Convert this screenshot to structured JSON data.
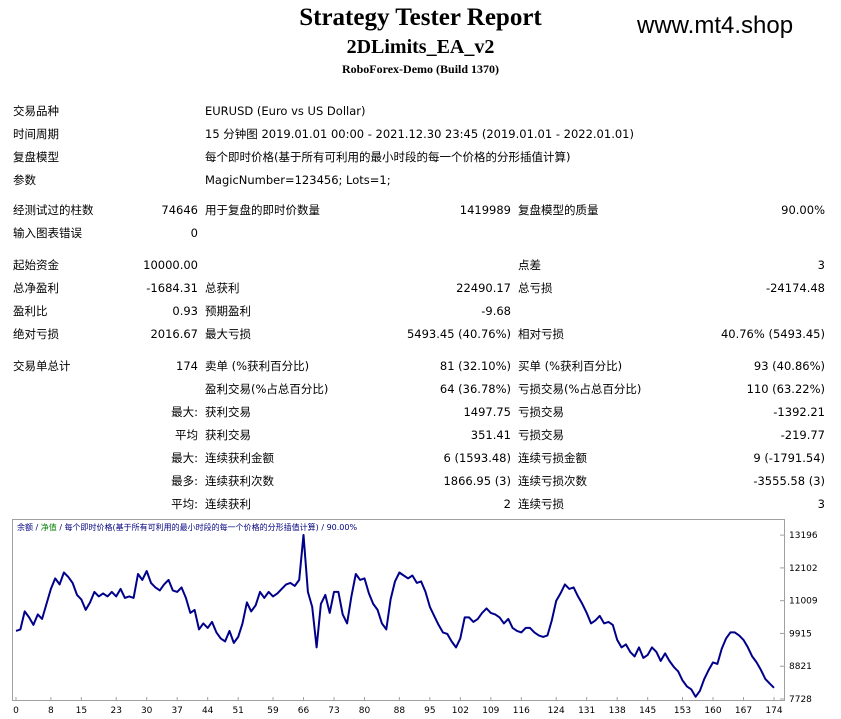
{
  "header": {
    "title": "Strategy Tester Report",
    "ea_name": "2DLimits_EA_v2",
    "server": "RoboForex-Demo (Build 1370)",
    "watermark": "www.mt4.shop"
  },
  "settings": {
    "symbol_label": "交易品种",
    "symbol_value": "EURUSD (Euro vs US Dollar)",
    "period_label": "时间周期",
    "period_value": "15 分钟图 2019.01.01 00:00 - 2021.12.30 23:45 (2019.01.01 - 2022.01.01)",
    "model_label": "复盘模型",
    "model_value": "每个即时价格(基于所有可利用的最小时段的每一个价格的分形插值计算)",
    "params_label": "参数",
    "params_value": "MagicNumber=123456; Lots=1;"
  },
  "stats": {
    "bars_label": "经测试过的柱数",
    "bars_value": "74646",
    "ticks_label": "用于复盘的即时价数量",
    "ticks_value": "1419989",
    "quality_label": "复盘模型的质量",
    "quality_value": "90.00%",
    "errors_label": "输入图表错误",
    "errors_value": "0",
    "deposit_label": "起始资金",
    "deposit_value": "10000.00",
    "spread_label": "点差",
    "spread_value": "3",
    "net_label": "总净盈利",
    "net_value": "-1684.31",
    "gross_profit_label": "总获利",
    "gross_profit_value": "22490.17",
    "gross_loss_label": "总亏损",
    "gross_loss_value": "-24174.48",
    "pf_label": "盈利比",
    "pf_value": "0.93",
    "payoff_label": "预期盈利",
    "payoff_value": "-9.68",
    "abs_dd_label": "绝对亏损",
    "abs_dd_value": "2016.67",
    "max_dd_label": "最大亏损",
    "max_dd_value": "5493.45 (40.76%)",
    "rel_dd_label": "相对亏损",
    "rel_dd_value": "40.76% (5493.45)",
    "trades_label": "交易单总计",
    "trades_value": "174",
    "short_label": "卖单 (%获利百分比)",
    "short_value": "81 (32.10%)",
    "long_label": "买单 (%获利百分比)",
    "long_value": "93 (40.86%)",
    "profit_trades_label": "盈利交易(%占总百分比)",
    "profit_trades_value": "64 (36.78%)",
    "loss_trades_label": "亏损交易(%占总百分比)",
    "loss_trades_value": "110 (63.22%)",
    "largest_prefix": "最大:",
    "largest_profit_label": "获利交易",
    "largest_profit_value": "1497.75",
    "largest_loss_label": "亏损交易",
    "largest_loss_value": "-1392.21",
    "average_prefix": "平均",
    "average_profit_label": "获利交易",
    "average_profit_value": "351.41",
    "average_loss_label": "亏损交易",
    "average_loss_value": "-219.77",
    "max_cons_prefix": "最大:",
    "max_cons_wins_label": "连续获利金额",
    "max_cons_wins_value": "6 (1593.48)",
    "max_cons_losses_label": "连续亏损金额",
    "max_cons_losses_value": "9 (-1791.54)",
    "maximal_prefix": "最多:",
    "maximal_wins_label": "连续获利次数",
    "maximal_wins_value": "1866.95 (3)",
    "maximal_losses_label": "连续亏损次数",
    "maximal_losses_value": "-3555.58 (3)",
    "avg_cons_prefix": "平均:",
    "avg_cons_wins_label": "连续获利",
    "avg_cons_wins_value": "2",
    "avg_cons_losses_label": "连续亏损",
    "avg_cons_losses_value": "3"
  },
  "chart_legend": {
    "balance": "余额",
    "sep1": " / ",
    "equity": "净值",
    "rest": " / 每个即时价格(基于所有可利用的最小时段的每一个价格的分形插值计算) / 90.00%"
  },
  "colors": {
    "line": "#00008b",
    "legend_text": "#000080",
    "equity": "#008000",
    "border": "#a0a0a0"
  },
  "chart_data": {
    "type": "line",
    "ylim": [
      7728,
      13700
    ],
    "yticks": [
      "13196",
      "12102",
      "11009",
      "9915",
      "8821",
      "7728"
    ],
    "ytick_values": [
      13196,
      12102,
      11009,
      9915,
      8821,
      7728
    ],
    "xticks": [
      "0",
      "8",
      "15",
      "23",
      "30",
      "37",
      "44",
      "51",
      "59",
      "66",
      "73",
      "80",
      "88",
      "95",
      "102",
      "109",
      "116",
      "124",
      "131",
      "138",
      "145",
      "153",
      "160",
      "167",
      "174"
    ],
    "xlim": [
      0,
      174
    ],
    "series": [
      {
        "x": [
          0,
          1,
          2,
          3,
          4,
          5,
          6,
          7,
          8,
          9,
          10,
          11,
          12,
          13,
          14,
          15,
          16,
          17,
          18,
          19,
          20,
          21,
          22,
          23,
          24,
          25,
          26,
          27,
          28,
          29,
          30,
          31,
          32,
          33,
          34,
          35,
          36,
          37,
          38,
          39,
          40,
          41,
          42,
          43,
          44,
          45,
          46,
          47,
          48,
          49,
          50,
          51,
          52,
          53,
          54,
          55,
          56,
          57,
          58,
          59,
          60,
          61,
          62,
          63,
          64,
          65,
          66,
          67,
          68,
          69,
          70,
          71,
          72,
          73,
          74,
          75,
          76,
          77,
          78,
          79,
          80,
          81,
          82,
          83,
          84,
          85,
          86,
          87,
          88,
          89,
          90,
          91,
          92,
          93,
          94,
          95,
          96,
          97,
          98,
          99,
          100,
          101,
          102,
          103,
          104,
          105,
          106,
          107,
          108,
          109,
          110,
          111,
          112,
          113,
          114,
          115,
          116,
          117,
          118,
          119,
          120,
          121,
          122,
          123,
          124,
          125,
          126,
          127,
          128,
          129,
          130,
          131,
          132,
          133,
          134,
          135,
          136,
          137,
          138,
          139,
          140,
          141,
          142,
          143,
          144,
          145,
          146,
          147,
          148,
          149,
          150,
          151,
          152,
          153,
          154,
          155,
          156,
          157,
          158,
          159,
          160,
          161,
          162,
          163,
          164,
          165,
          166,
          167,
          168,
          169,
          170,
          171,
          172,
          173,
          174
        ],
        "values": [
          10000,
          10050,
          10650,
          10450,
          10200,
          10550,
          10400,
          10900,
          11400,
          11750,
          11550,
          11950,
          11800,
          11600,
          11200,
          11050,
          10700,
          10950,
          11300,
          11150,
          11250,
          11150,
          11300,
          11150,
          11400,
          11100,
          11150,
          11100,
          11900,
          11700,
          12000,
          11600,
          11450,
          11350,
          11550,
          11700,
          11350,
          11300,
          11450,
          11100,
          10600,
          10700,
          10050,
          10250,
          10100,
          10300,
          9950,
          9750,
          9650,
          10000,
          9600,
          9800,
          10250,
          10950,
          10650,
          10850,
          11300,
          11100,
          11300,
          11150,
          11250,
          11400,
          11550,
          11600,
          11500,
          11700,
          13200,
          11300,
          10800,
          9450,
          10900,
          11200,
          10600,
          11300,
          11300,
          10550,
          10250,
          11150,
          11900,
          11700,
          11750,
          11250,
          10900,
          10700,
          10250,
          10050,
          11050,
          11650,
          11950,
          11850,
          11750,
          11850,
          11600,
          11650,
          11300,
          10800,
          10500,
          10200,
          9950,
          9900,
          9650,
          9450,
          9750,
          10450,
          10450,
          10300,
          10400,
          10600,
          10750,
          10600,
          10550,
          10450,
          10250,
          10400,
          10100,
          10000,
          9950,
          10100,
          10100,
          9950,
          9850,
          9800,
          9850,
          10350,
          11000,
          11250,
          11550,
          11400,
          11450,
          11150,
          10900,
          10600,
          10250,
          10350,
          10500,
          10250,
          10300,
          10200,
          9700,
          9450,
          9550,
          9300,
          9150,
          9450,
          9100,
          9200,
          9450,
          9300,
          9000,
          9250,
          9000,
          8800,
          8650,
          8350,
          8150,
          8050,
          7800,
          8000,
          8400,
          8700,
          8950,
          8900,
          9400,
          9750,
          9950,
          9950,
          9850,
          9700,
          9450,
          9150,
          8950,
          8700,
          8400,
          8250,
          8100
        ]
      }
    ]
  }
}
